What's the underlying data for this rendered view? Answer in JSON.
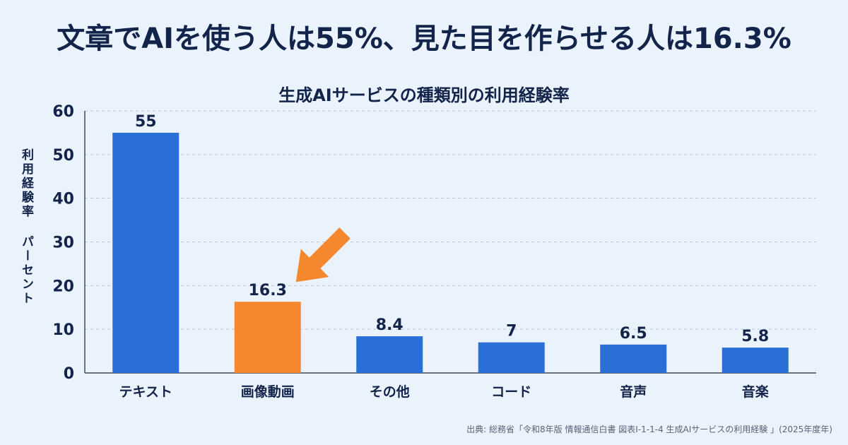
{
  "headline": "文章でAIを使う人は55%、見た目を作らせる人は16.3%",
  "chart_data": {
    "type": "bar",
    "title": "生成AIサービスの種類別の利用経験率",
    "xlabel": "",
    "ylabel": "利用経験率 パーセント",
    "ylim": [
      0,
      60
    ],
    "yticks": [
      0,
      10,
      20,
      30,
      40,
      50,
      60
    ],
    "grid": true,
    "categories": [
      "テキスト",
      "画像動画",
      "その他",
      "コード",
      "音声",
      "音楽"
    ],
    "values": [
      55,
      16.3,
      8.4,
      7,
      6.5,
      5.8
    ],
    "value_labels": [
      "55",
      "16.3",
      "8.4",
      "7",
      "6.5",
      "5.8"
    ],
    "highlight_index": 1,
    "annotation": "arrow-pointing-to-画像動画"
  },
  "colors": {
    "bar": "#2a6fd6",
    "highlight": "#f5882f",
    "arrow": "#f5882f",
    "grid": "#b9c9dd",
    "axis": "#3a4a66",
    "text": "#13244a",
    "background": "#eaf2fb"
  },
  "source": "出典: 総務省「令和8年版 情報通信白書 図表I-1-1-4 生成AIサービスの利用経験 」(2025年度年)"
}
